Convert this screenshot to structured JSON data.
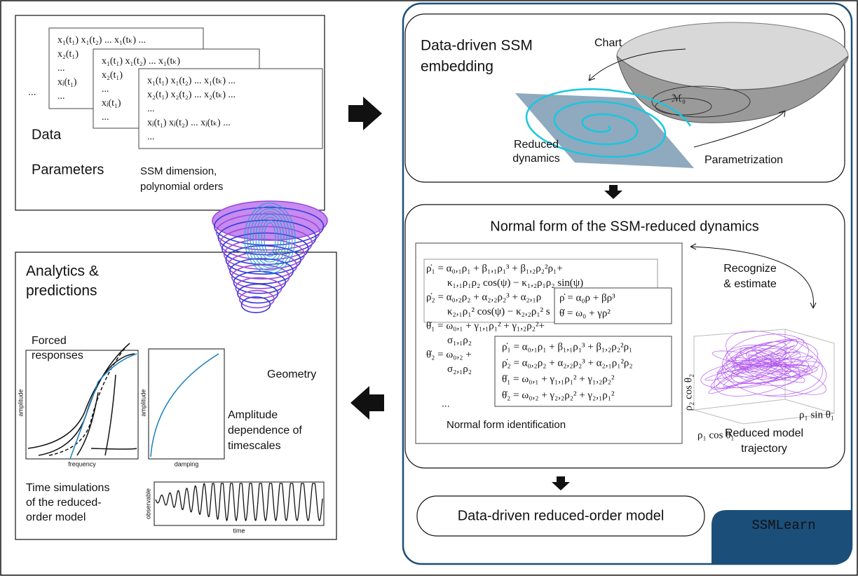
{
  "input": {
    "matrices": [
      [
        "x₁(t₁)   x₁(t₂)   ...   x₁(tₖ)   ...",
        "x₂(t₁)",
        "...",
        "xⱼ(t₁)",
        "..."
      ],
      [
        "x₁(t₁)   x₁(t₂)   ...   x₁(tₖ)",
        "x₂(t₁)",
        "...",
        "xⱼ(t₁)",
        "..."
      ],
      [
        "x₁(t₁)   x₁(t₂)   ...   x₁(tₖ)   ...",
        "x₂(t₁)   x₂(t₂)   ...   x₂(tₖ)   ...",
        "...",
        "xⱼ(t₁)   xⱼ(t₂)   ...   xⱼ(tₖ)   ...",
        "..."
      ]
    ],
    "dots": "...",
    "data_label": "Data",
    "parameters_label": "Parameters",
    "parameters_value": [
      "SSM dimension,",
      "polynomial orders"
    ]
  },
  "embedding": {
    "title": [
      "Data-driven SSM",
      "embedding"
    ],
    "chart": "Chart",
    "manifold": "ℳ₀",
    "reduced": [
      "Reduced",
      "dynamics"
    ],
    "parametrization": "Parametrization"
  },
  "normal_form": {
    "title": "Normal form of the SSM-reduced dynamics",
    "equations_full": [
      "ρ̇₁ = α₀,₁ρ₁ + β₁,₁ρ₁³ + β₁,₂ρ₂²ρ₁+",
      "κ₁,₁ρ₁ρ₂ cos(ψ) − κ₁,₂ρ₁ρ₂ sin(ψ)",
      "ρ̇₂ = α₀,₂ρ₂ + α₂,₂ρ₂³ + α₂,₁ρ",
      "κ₂,₁ρ₁² cos(ψ) − κ₂,₂ρ₁² s",
      "θ̇₁ = ω₀,₁ + γ₁,₁ρ₁² + γ₁,₂ρ₂²+",
      "σ₁,₁ρ₂",
      "θ̇₂ = ω₀,₂ +",
      "σ₂,₁ρ₂"
    ],
    "equations_small": [
      "ρ̇ = α₀ρ + βρ³",
      "θ̇ = ω₀ + γρ²"
    ],
    "equations_mid": [
      "ρ̇₁ = α₀,₁ρ₁ + β₁,₁ρ₁³ + β₁,₂ρ₂²ρ₁",
      "ρ̇₂ = α₀,₂ρ₂ + α₂,₂ρ₂³ + α₂,₁ρ₁²ρ₂",
      "θ̇₁ = ω₀,₁ + γ₁,₁ρ₁² + γ₁,₂ρ₂²",
      "θ̇₂ = ω₀,₂ + γ₂,₂ρ₂² + γ₂,₁ρ₁²"
    ],
    "dots": "...",
    "caption": "Normal form identification",
    "recognize": [
      "Recognize",
      "& estimate"
    ],
    "trajectory": [
      "Reduced model",
      "trajectory"
    ],
    "axes": [
      "ρ₂ cos θ₂",
      "ρ₁ cos θ₁",
      "ρ₁ sin θ₁"
    ]
  },
  "model": "Data-driven reduced-order model",
  "brand": "SSMLearn",
  "analytics": {
    "title": [
      "Analytics &",
      "predictions"
    ],
    "forced": [
      "Forced",
      "responses"
    ],
    "geometry": "Geometry",
    "timescales": [
      "Amplitude",
      "dependence of",
      "timescales"
    ],
    "simulations": [
      "Time simulations",
      "of the reduced-",
      "order model"
    ],
    "forced_axes": [
      "amplitude",
      "frequency"
    ],
    "damping_axes": [
      "amplitude",
      "damping"
    ],
    "time_axes": [
      "observable",
      "time"
    ]
  }
}
